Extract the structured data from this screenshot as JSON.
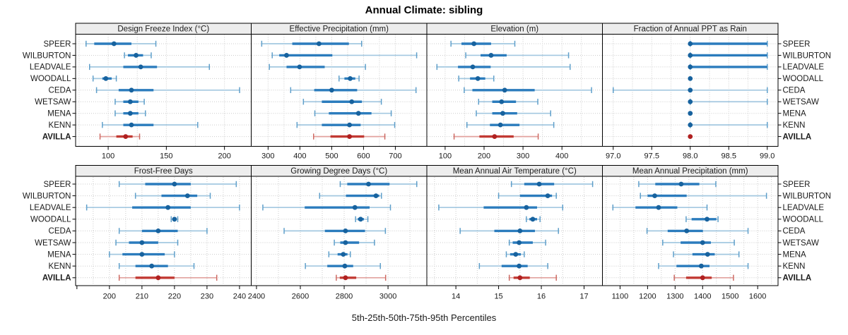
{
  "title": "Annual Climate: sibling",
  "footer": "5th-25th-50th-75th-95th Percentiles",
  "stations": [
    "SPEER",
    "WILBURTON",
    "LEADVALE",
    "WOODALL",
    "CEDA",
    "WETSAW",
    "MENA",
    "KENN",
    "AVILLA"
  ],
  "highlight_station": "AVILLA",
  "colors": {
    "blue_dot": "#17629e",
    "blue_mid": "#2b7cbd",
    "blue_light": "#a3c8e0",
    "blue_cap": "#5f9fca",
    "red_dot": "#b02020",
    "red_mid": "#c23a33",
    "red_light": "#e2a29e",
    "red_cap": "#cd6a63",
    "grid": "#cccccc",
    "strip_bg": "#ededed",
    "border": "#000000",
    "text": "#1a1a1a"
  },
  "chart_data": [
    {
      "type": "percentile-dotplot",
      "title": "Design Freeze Index (°C)",
      "xlim": [
        72,
        223
      ],
      "ticks": [
        100,
        150,
        200
      ],
      "tick_labels": [
        "100",
        "150",
        "200"
      ],
      "grid_step": 25,
      "percentile_labels": [
        "5th",
        "25th",
        "50th",
        "75th",
        "95th"
      ],
      "rows": [
        [
          81,
          88,
          105,
          120,
          141
        ],
        [
          114,
          117,
          124,
          130,
          137
        ],
        [
          84,
          113,
          128,
          142,
          187
        ],
        [
          87,
          95,
          98,
          103,
          107
        ],
        [
          90,
          109,
          120,
          139,
          213
        ],
        [
          106,
          113,
          119,
          126,
          131
        ],
        [
          106,
          113,
          119,
          126,
          132
        ],
        [
          95,
          113,
          120,
          139,
          177
        ],
        [
          93,
          107,
          115,
          121,
          127
        ]
      ]
    },
    {
      "type": "percentile-dotplot",
      "title": "Effective Precipitation (mm)",
      "xlim": [
        247,
        799
      ],
      "ticks": [
        300,
        400,
        500,
        600,
        700
      ],
      "tick_labels": [
        "300",
        "400",
        "500",
        "600",
        "700"
      ],
      "grid_step": 50,
      "percentile_labels": [
        "5th",
        "25th",
        "50th",
        "75th",
        "95th"
      ],
      "rows": [
        [
          280,
          376,
          460,
          554,
          594
        ],
        [
          313,
          335,
          358,
          502,
          767
        ],
        [
          304,
          358,
          399,
          478,
          606
        ],
        [
          523,
          540,
          558,
          574,
          586
        ],
        [
          371,
          445,
          500,
          580,
          765
        ],
        [
          411,
          469,
          563,
          595,
          656
        ],
        [
          447,
          491,
          584,
          625,
          687
        ],
        [
          391,
          469,
          556,
          591,
          698
        ],
        [
          443,
          496,
          556,
          602,
          667
        ]
      ]
    },
    {
      "type": "percentile-dotplot",
      "title": "Elevation (m)",
      "xlim": [
        53,
        504
      ],
      "ticks": [
        100,
        200,
        300,
        400
      ],
      "tick_labels": [
        "100",
        "200",
        "300",
        "400"
      ],
      "grid_step": 50,
      "percentile_labels": [
        "5th",
        "25th",
        "50th",
        "75th",
        "95th"
      ],
      "rows": [
        [
          115,
          142,
          174,
          218,
          279
        ],
        [
          153,
          191,
          218,
          258,
          417
        ],
        [
          79,
          133,
          171,
          217,
          421
        ],
        [
          135,
          164,
          184,
          203,
          225
        ],
        [
          149,
          170,
          253,
          330,
          476
        ],
        [
          186,
          221,
          245,
          282,
          338
        ],
        [
          180,
          221,
          248,
          285,
          371
        ],
        [
          156,
          215,
          242,
          291,
          379
        ],
        [
          123,
          188,
          227,
          276,
          339
        ]
      ]
    },
    {
      "type": "percentile-dotplot",
      "title": "Fraction of Annual PPT as Rain",
      "xlim": [
        96.86,
        99.14
      ],
      "ticks": [
        97.0,
        97.5,
        98.0,
        98.5,
        99.0
      ],
      "tick_labels": [
        "97.0",
        "97.5",
        "98.0",
        "98.5",
        "99.0"
      ],
      "grid_step": 0.25,
      "percentile_labels": [
        "5th",
        "25th",
        "50th",
        "75th",
        "95th"
      ],
      "rows": [
        [
          98,
          98,
          98,
          99,
          99
        ],
        [
          98,
          98,
          98,
          99,
          99
        ],
        [
          98,
          98,
          98,
          99,
          99
        ],
        [
          98,
          98,
          98,
          98,
          98
        ],
        [
          97,
          98,
          98,
          98,
          99
        ],
        [
          98,
          98,
          98,
          98,
          99
        ],
        [
          98,
          98,
          98,
          98,
          98
        ],
        [
          98,
          98,
          98,
          98,
          99
        ],
        [
          98,
          98,
          98,
          98,
          98
        ]
      ]
    },
    {
      "type": "percentile-dotplot",
      "title": "Frost-Free Days",
      "xlim": [
        189.6,
        243.6
      ],
      "ticks": [
        190,
        200,
        210,
        220,
        230,
        240
      ],
      "tick_labels": [
        "",
        "200",
        "210",
        "220",
        "230",
        "240"
      ],
      "grid_step": 5,
      "percentile_labels": [
        "5th",
        "25th",
        "50th",
        "75th",
        "95th"
      ],
      "rows": [
        [
          203,
          211,
          220,
          225,
          239
        ],
        [
          208,
          216,
          224,
          227,
          231
        ],
        [
          193,
          207,
          218,
          225,
          240
        ],
        [
          219,
          219.5,
          220,
          220.5,
          221
        ],
        [
          203,
          210,
          215,
          221,
          230
        ],
        [
          202,
          206,
          210,
          215,
          221
        ],
        [
          200,
          204,
          210,
          217,
          220
        ],
        [
          203,
          208,
          213,
          218,
          226
        ],
        [
          203,
          208,
          215,
          220,
          233
        ]
      ]
    },
    {
      "type": "percentile-dotplot",
      "title": "Growing Degree Days (°C)",
      "xlim": [
        2376,
        3177
      ],
      "ticks": [
        2400,
        2600,
        2800,
        3000
      ],
      "tick_labels": [
        "2400",
        "2600",
        "2800",
        "3000"
      ],
      "grid_step": 100,
      "percentile_labels": [
        "5th",
        "25th",
        "50th",
        "75th",
        "95th"
      ],
      "rows": [
        [
          2782,
          2814,
          2911,
          3007,
          3131
        ],
        [
          2688,
          2808,
          2945,
          2960,
          2970
        ],
        [
          2429,
          2620,
          2849,
          2916,
          3011
        ],
        [
          2852,
          2862,
          2875,
          2890,
          2908
        ],
        [
          2526,
          2712,
          2806,
          2895,
          2988
        ],
        [
          2755,
          2782,
          2806,
          2868,
          2938
        ],
        [
          2730,
          2770,
          2796,
          2815,
          2828
        ],
        [
          2623,
          2723,
          2803,
          2841,
          2965
        ],
        [
          2764,
          2780,
          2806,
          2855,
          2989
        ]
      ]
    },
    {
      "type": "percentile-dotplot",
      "title": "Mean Annual Air Temperature (°C)",
      "xlim": [
        13.32,
        17.43
      ],
      "ticks": [
        14,
        15,
        16,
        17
      ],
      "tick_labels": [
        "14",
        "15",
        "16",
        "17"
      ],
      "grid_step": 0.5,
      "percentile_labels": [
        "5th",
        "25th",
        "50th",
        "75th",
        "95th"
      ],
      "rows": [
        [
          15.3,
          15.6,
          15.95,
          16.3,
          17.2
        ],
        [
          15.0,
          15.5,
          16.15,
          16.25,
          16.35
        ],
        [
          13.6,
          14.65,
          15.65,
          15.9,
          16.5
        ],
        [
          15.65,
          15.72,
          15.8,
          15.9,
          15.97
        ],
        [
          14.1,
          14.9,
          15.5,
          15.85,
          16.4
        ],
        [
          15.25,
          15.33,
          15.48,
          15.8,
          16.1
        ],
        [
          15.18,
          15.27,
          15.4,
          15.52,
          15.6
        ],
        [
          14.55,
          15.07,
          15.48,
          15.68,
          16.15
        ],
        [
          15.25,
          15.35,
          15.5,
          15.73,
          16.35
        ]
      ]
    },
    {
      "type": "percentile-dotplot",
      "title": "Mean Annual Precipitation (mm)",
      "xlim": [
        1036,
        1674
      ],
      "ticks": [
        1100,
        1200,
        1300,
        1400,
        1500,
        1600
      ],
      "tick_labels": [
        "1100",
        "1200",
        "1300",
        "1400",
        "1500",
        "1600"
      ],
      "grid_step": 50,
      "percentile_labels": [
        "5th",
        "25th",
        "50th",
        "75th",
        "95th"
      ],
      "rows": [
        [
          1168,
          1228,
          1322,
          1388,
          1448
        ],
        [
          1174,
          1200,
          1226,
          1342,
          1632
        ],
        [
          1074,
          1156,
          1240,
          1308,
          1416
        ],
        [
          1340,
          1360,
          1416,
          1450,
          1456
        ],
        [
          1198,
          1273,
          1342,
          1401,
          1565
        ],
        [
          1255,
          1320,
          1400,
          1430,
          1515
        ],
        [
          1294,
          1363,
          1418,
          1444,
          1532
        ],
        [
          1240,
          1305,
          1395,
          1425,
          1565
        ],
        [
          1297,
          1340,
          1400,
          1433,
          1512
        ]
      ]
    }
  ]
}
